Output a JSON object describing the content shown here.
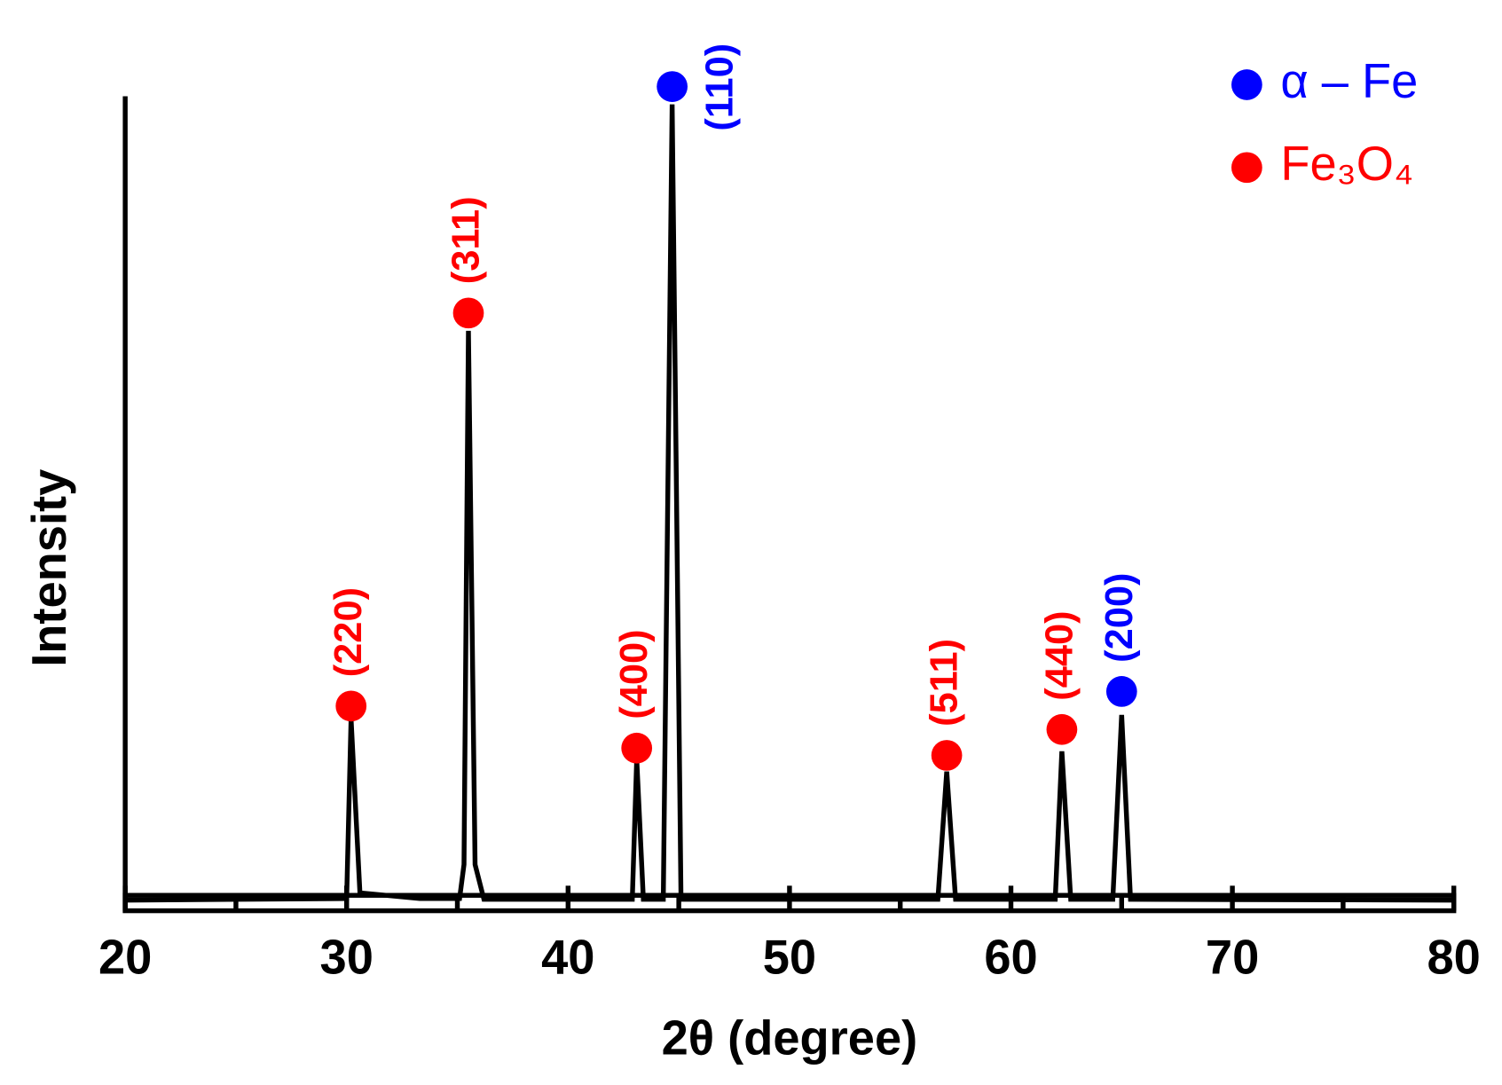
{
  "chart_data": {
    "type": "line",
    "xlabel": "2θ (degree)",
    "ylabel": "Intensity",
    "xlim": [
      20,
      80
    ],
    "xticks": [
      20,
      30,
      40,
      50,
      60,
      70,
      80
    ],
    "xminorticks": [
      25,
      35,
      45,
      55,
      65,
      75
    ],
    "ylim": [
      0,
      100
    ],
    "legend": "top-right",
    "series": [
      {
        "color": "#000000",
        "x": [
          20,
          30.0,
          30.2,
          30.6,
          33.3,
          35.1,
          35.3,
          35.5,
          35.8,
          36.2,
          42.9,
          43.1,
          43.4,
          44.3,
          44.7,
          45.1,
          56.7,
          57.1,
          57.5,
          62.0,
          62.3,
          62.7,
          64.6,
          65.0,
          65.4,
          80
        ],
        "values": [
          0.6,
          0.8,
          23,
          1.5,
          0.8,
          0.8,
          5,
          71,
          5,
          0.7,
          0.7,
          18,
          0.7,
          0.7,
          99,
          0.7,
          0.7,
          16.5,
          0.7,
          0.7,
          19,
          0.7,
          0.7,
          23.5,
          0.7,
          0.6
        ]
      },
      {
        "name": "α – Fe",
        "color": "#0000ff",
        "x": [
          44.7,
          65.0
        ],
        "values": [
          101.2,
          26.4
        ],
        "labels": [
          "(110)",
          "(200)"
        ]
      },
      {
        "name": "Fe₃O₄",
        "color": "#ff0000",
        "x": [
          30.2,
          35.5,
          43.1,
          57.1,
          62.3
        ],
        "values": [
          24.6,
          73.2,
          19.4,
          18.5,
          21.7
        ],
        "labels": [
          "(220)",
          "(311)",
          "(400)",
          "(511)",
          "(440)"
        ]
      }
    ]
  }
}
